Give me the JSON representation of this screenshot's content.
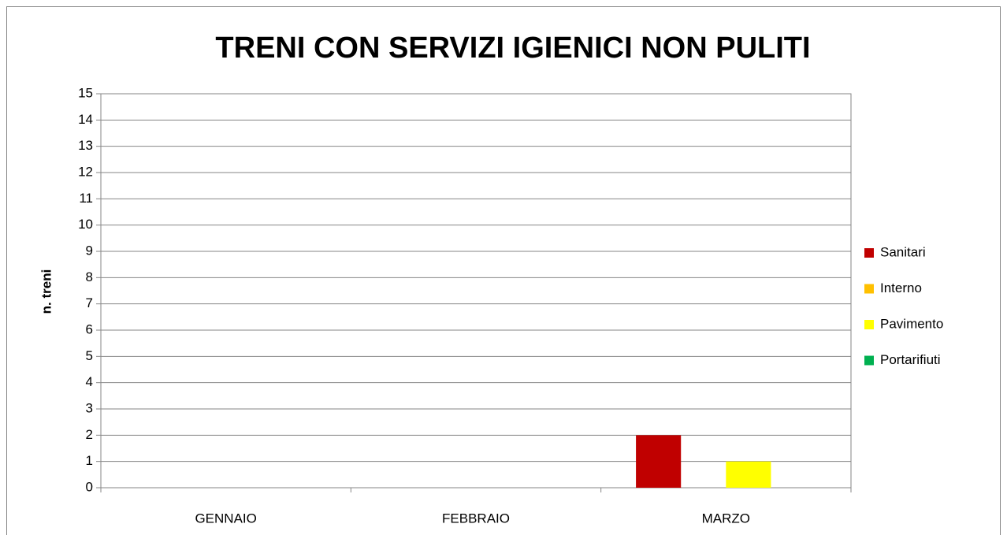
{
  "chart_data": {
    "type": "bar",
    "title": "TRENI CON SERVIZI IGIENICI NON PULITI",
    "y_label": "n. treni",
    "categories": [
      "GENNAIO",
      "FEBBRAIO",
      "MARZO"
    ],
    "series": [
      {
        "name": "Sanitari",
        "color": "#c00000",
        "values": [
          0,
          0,
          2
        ]
      },
      {
        "name": "Interno",
        "color": "#ffc000",
        "values": [
          0,
          0,
          0
        ]
      },
      {
        "name": "Pavimento",
        "color": "#ffff00",
        "values": [
          0,
          0,
          1
        ]
      },
      {
        "name": "Portarifiuti",
        "color": "#00b050",
        "values": [
          0,
          0,
          0
        ]
      }
    ],
    "ylim": [
      0,
      15
    ],
    "yticks": [
      0,
      1,
      2,
      3,
      4,
      5,
      6,
      7,
      8,
      9,
      10,
      11,
      12,
      13,
      14,
      15
    ],
    "grid": true,
    "legend": "right"
  }
}
